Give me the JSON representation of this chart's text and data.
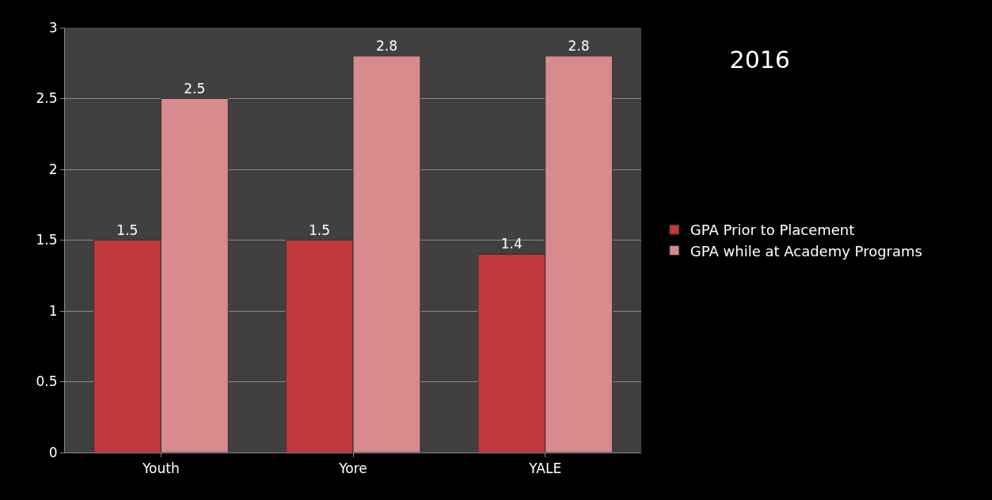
{
  "chart_data": {
    "type": "bar",
    "title": "2016",
    "categories": [
      "Youth",
      "Yore",
      "YALE"
    ],
    "series": [
      {
        "name": "GPA Prior to Placement",
        "color": "#c0393b",
        "values": [
          1.5,
          1.5,
          1.4
        ]
      },
      {
        "name": "GPA while at Academy Programs",
        "color": "#d98a8c",
        "values": [
          2.5,
          2.8,
          2.8
        ]
      }
    ],
    "ylim": [
      0,
      3
    ],
    "yticks": [
      0,
      0.5,
      1,
      1.5,
      2,
      2.5,
      3
    ],
    "grid": "y",
    "legend": "right",
    "data_labels": true
  }
}
